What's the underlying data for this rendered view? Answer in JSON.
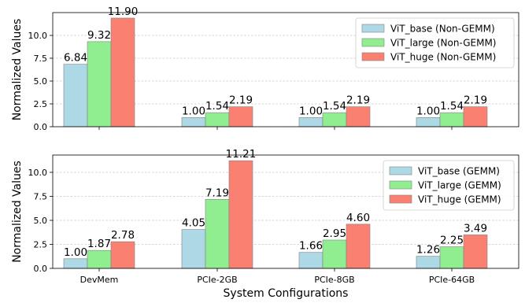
{
  "chart_data": [
    {
      "type": "bar",
      "categories": [
        "DevMem",
        "PCIe-2GB",
        "PCIe-8GB",
        "PCIe-64GB"
      ],
      "series": [
        {
          "name": "ViT_base (Non-GEMM)",
          "values": [
            6.84,
            1.0,
            1.0,
            1.0
          ],
          "color": "#add8e6"
        },
        {
          "name": "ViT_large (Non-GEMM)",
          "values": [
            9.32,
            1.54,
            1.54,
            1.54
          ],
          "color": "#90ee90"
        },
        {
          "name": "ViT_huge (Non-GEMM)",
          "values": [
            11.9,
            2.19,
            2.19,
            2.19
          ],
          "color": "#fa8072"
        }
      ],
      "data_labels": [
        [
          "6.84",
          "1.00",
          "1.00",
          "1.00"
        ],
        [
          "9.32",
          "1.54",
          "1.54",
          "1.54"
        ],
        [
          "11.90",
          "2.19",
          "2.19",
          "2.19"
        ]
      ],
      "xlabel": "",
      "ylabel": "Normalized Values",
      "ylim": [
        0,
        12.5
      ],
      "yticks": [
        0.0,
        2.5,
        5.0,
        7.5,
        10.0
      ],
      "ytick_labels": [
        "0.0",
        "2.5",
        "5.0",
        "7.5",
        "10.0"
      ],
      "show_x_tick_labels": false,
      "grid": "y",
      "legend_position": "upper right"
    },
    {
      "type": "bar",
      "categories": [
        "DevMem",
        "PCIe-2GB",
        "PCIe-8GB",
        "PCIe-64GB"
      ],
      "series": [
        {
          "name": "ViT_base (GEMM)",
          "values": [
            1.0,
            4.05,
            1.66,
            1.26
          ],
          "color": "#add8e6"
        },
        {
          "name": "ViT_large (GEMM)",
          "values": [
            1.87,
            7.19,
            2.95,
            2.25
          ],
          "color": "#90ee90"
        },
        {
          "name": "ViT_huge (GEMM)",
          "values": [
            2.78,
            11.21,
            4.6,
            3.49
          ],
          "color": "#fa8072"
        }
      ],
      "data_labels": [
        [
          "1.00",
          "4.05",
          "1.66",
          "1.26"
        ],
        [
          "1.87",
          "7.19",
          "2.95",
          "2.25"
        ],
        [
          "2.78",
          "11.21",
          "4.60",
          "3.49"
        ]
      ],
      "xlabel": "System Configurations",
      "ylabel": "Normalized Values",
      "ylim": [
        0,
        11.8
      ],
      "yticks": [
        0.0,
        2.5,
        5.0,
        7.5,
        10.0
      ],
      "ytick_labels": [
        "0.0",
        "2.5",
        "5.0",
        "7.5",
        "10.0"
      ],
      "show_x_tick_labels": true,
      "grid": "y",
      "legend_position": "upper right"
    }
  ]
}
